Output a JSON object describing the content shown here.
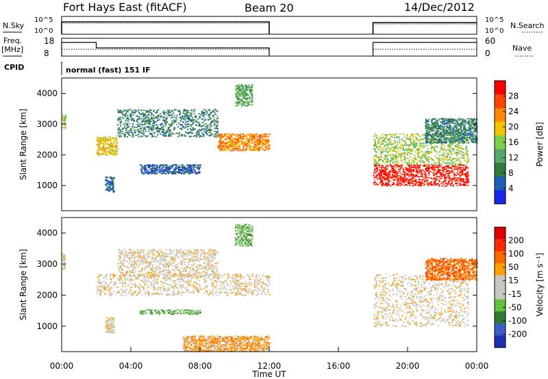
{
  "header": {
    "station": "Fort Hays East (fitACF)",
    "beam": "Beam 20",
    "date": "14/Dec/2012"
  },
  "panels": {
    "nsky_label": "N.Sky",
    "nsearch_label": "N.Search",
    "freq_label": "Freq.",
    "freq_unit": "[MHz]",
    "nave_label": "Nave",
    "cpid_label": "CPID",
    "cpid_text": "normal (fast) 151 IF",
    "noise_ticks_left": [
      "10^5",
      "10^0"
    ],
    "noise_ticks_right": [
      "10^5",
      "10^0"
    ],
    "freq_ticks": [
      "18",
      "8"
    ],
    "nave_ticks": [
      "60",
      "0"
    ]
  },
  "colors": {
    "power_scale": [
      "#1428e6",
      "#1e60b4",
      "#2f7a3c",
      "#55a66a",
      "#7fcf4a",
      "#f5c400",
      "#ff8a00",
      "#ff4400",
      "#ff0000"
    ],
    "velocity_scale": [
      "#1c2fb0",
      "#3a5fc8",
      "#2e7d32",
      "#62c23e",
      "#c8c8c0",
      "#c8c8c0",
      "#ffa000",
      "#ff6a00",
      "#ff2a00",
      "#e00000"
    ],
    "ground_scatter": "#c0c0b8"
  },
  "chart_data": [
    {
      "type": "heatmap",
      "name": "power",
      "ylabel": "Slant Range [km]",
      "colorbar_label": "Power [dB]",
      "colorbar_ticks": [
        "28",
        "24",
        "20",
        "16",
        "12",
        "8",
        "4"
      ],
      "ylim": [
        180,
        4500
      ],
      "yticks": [
        "1000",
        "2000",
        "3000",
        "4000"
      ],
      "regions": [
        {
          "t0": 0.0,
          "t1": 0.2,
          "r0": 2850,
          "r1": 3350,
          "level": 4
        },
        {
          "t0": 2.0,
          "t1": 3.2,
          "r0": 2000,
          "r1": 2600,
          "level": 5
        },
        {
          "t0": 3.2,
          "t1": 9.0,
          "r0": 2600,
          "r1": 3500,
          "level": 2
        },
        {
          "t0": 9.0,
          "t1": 12.0,
          "r0": 2150,
          "r1": 2700,
          "level": 6
        },
        {
          "t0": 2.5,
          "t1": 3.0,
          "r0": 800,
          "r1": 1300,
          "level": 1
        },
        {
          "t0": 4.5,
          "t1": 8.0,
          "r0": 1400,
          "r1": 1700,
          "level": 1
        },
        {
          "t0": 10.0,
          "t1": 11.0,
          "r0": 3600,
          "r1": 4300,
          "level": 3
        },
        {
          "t0": 18.0,
          "t1": 23.5,
          "r0": 1000,
          "r1": 1700,
          "level": 8
        },
        {
          "t0": 18.0,
          "t1": 23.5,
          "r0": 1700,
          "r1": 2700,
          "level": 4
        },
        {
          "t0": 21.0,
          "t1": 24.0,
          "r0": 2400,
          "r1": 3200,
          "level": 2
        }
      ]
    },
    {
      "type": "heatmap",
      "name": "velocity",
      "ylabel": "Slant Range [km]",
      "xlabel": "Time UT",
      "colorbar_label": "Velocity [m s⁻¹]",
      "colorbar_ticks": [
        "200",
        "100",
        "50",
        "15",
        "-15",
        "-50",
        "-100",
        "-200"
      ],
      "ylim": [
        180,
        4500
      ],
      "yticks": [
        "1000",
        "2000",
        "3000",
        "4000"
      ],
      "xlim": [
        0,
        24
      ],
      "xticks": [
        "00:00",
        "04:00",
        "08:00",
        "12:00",
        "16:00",
        "20:00",
        "00:00"
      ],
      "regions": [
        {
          "t0": 0.0,
          "t1": 0.2,
          "r0": 2850,
          "r1": 3350,
          "level": 5
        },
        {
          "t0": 2.0,
          "t1": 12.0,
          "r0": 2000,
          "r1": 2700,
          "level": 5
        },
        {
          "t0": 3.2,
          "t1": 9.0,
          "r0": 2600,
          "r1": 3500,
          "level": 5
        },
        {
          "t0": 4.5,
          "t1": 8.0,
          "r0": 1400,
          "r1": 1550,
          "level": 3
        },
        {
          "t0": 10.0,
          "t1": 11.0,
          "r0": 3600,
          "r1": 4300,
          "level": 3
        },
        {
          "t0": 2.5,
          "t1": 3.0,
          "r0": 800,
          "r1": 1300,
          "level": 5
        },
        {
          "t0": 7.0,
          "t1": 12.0,
          "r0": 200,
          "r1": 700,
          "level": 6
        },
        {
          "t0": 18.0,
          "t1": 23.5,
          "r0": 1000,
          "r1": 2700,
          "level": 5
        },
        {
          "t0": 21.0,
          "t1": 24.0,
          "r0": 2500,
          "r1": 3200,
          "level": 7
        }
      ]
    }
  ]
}
